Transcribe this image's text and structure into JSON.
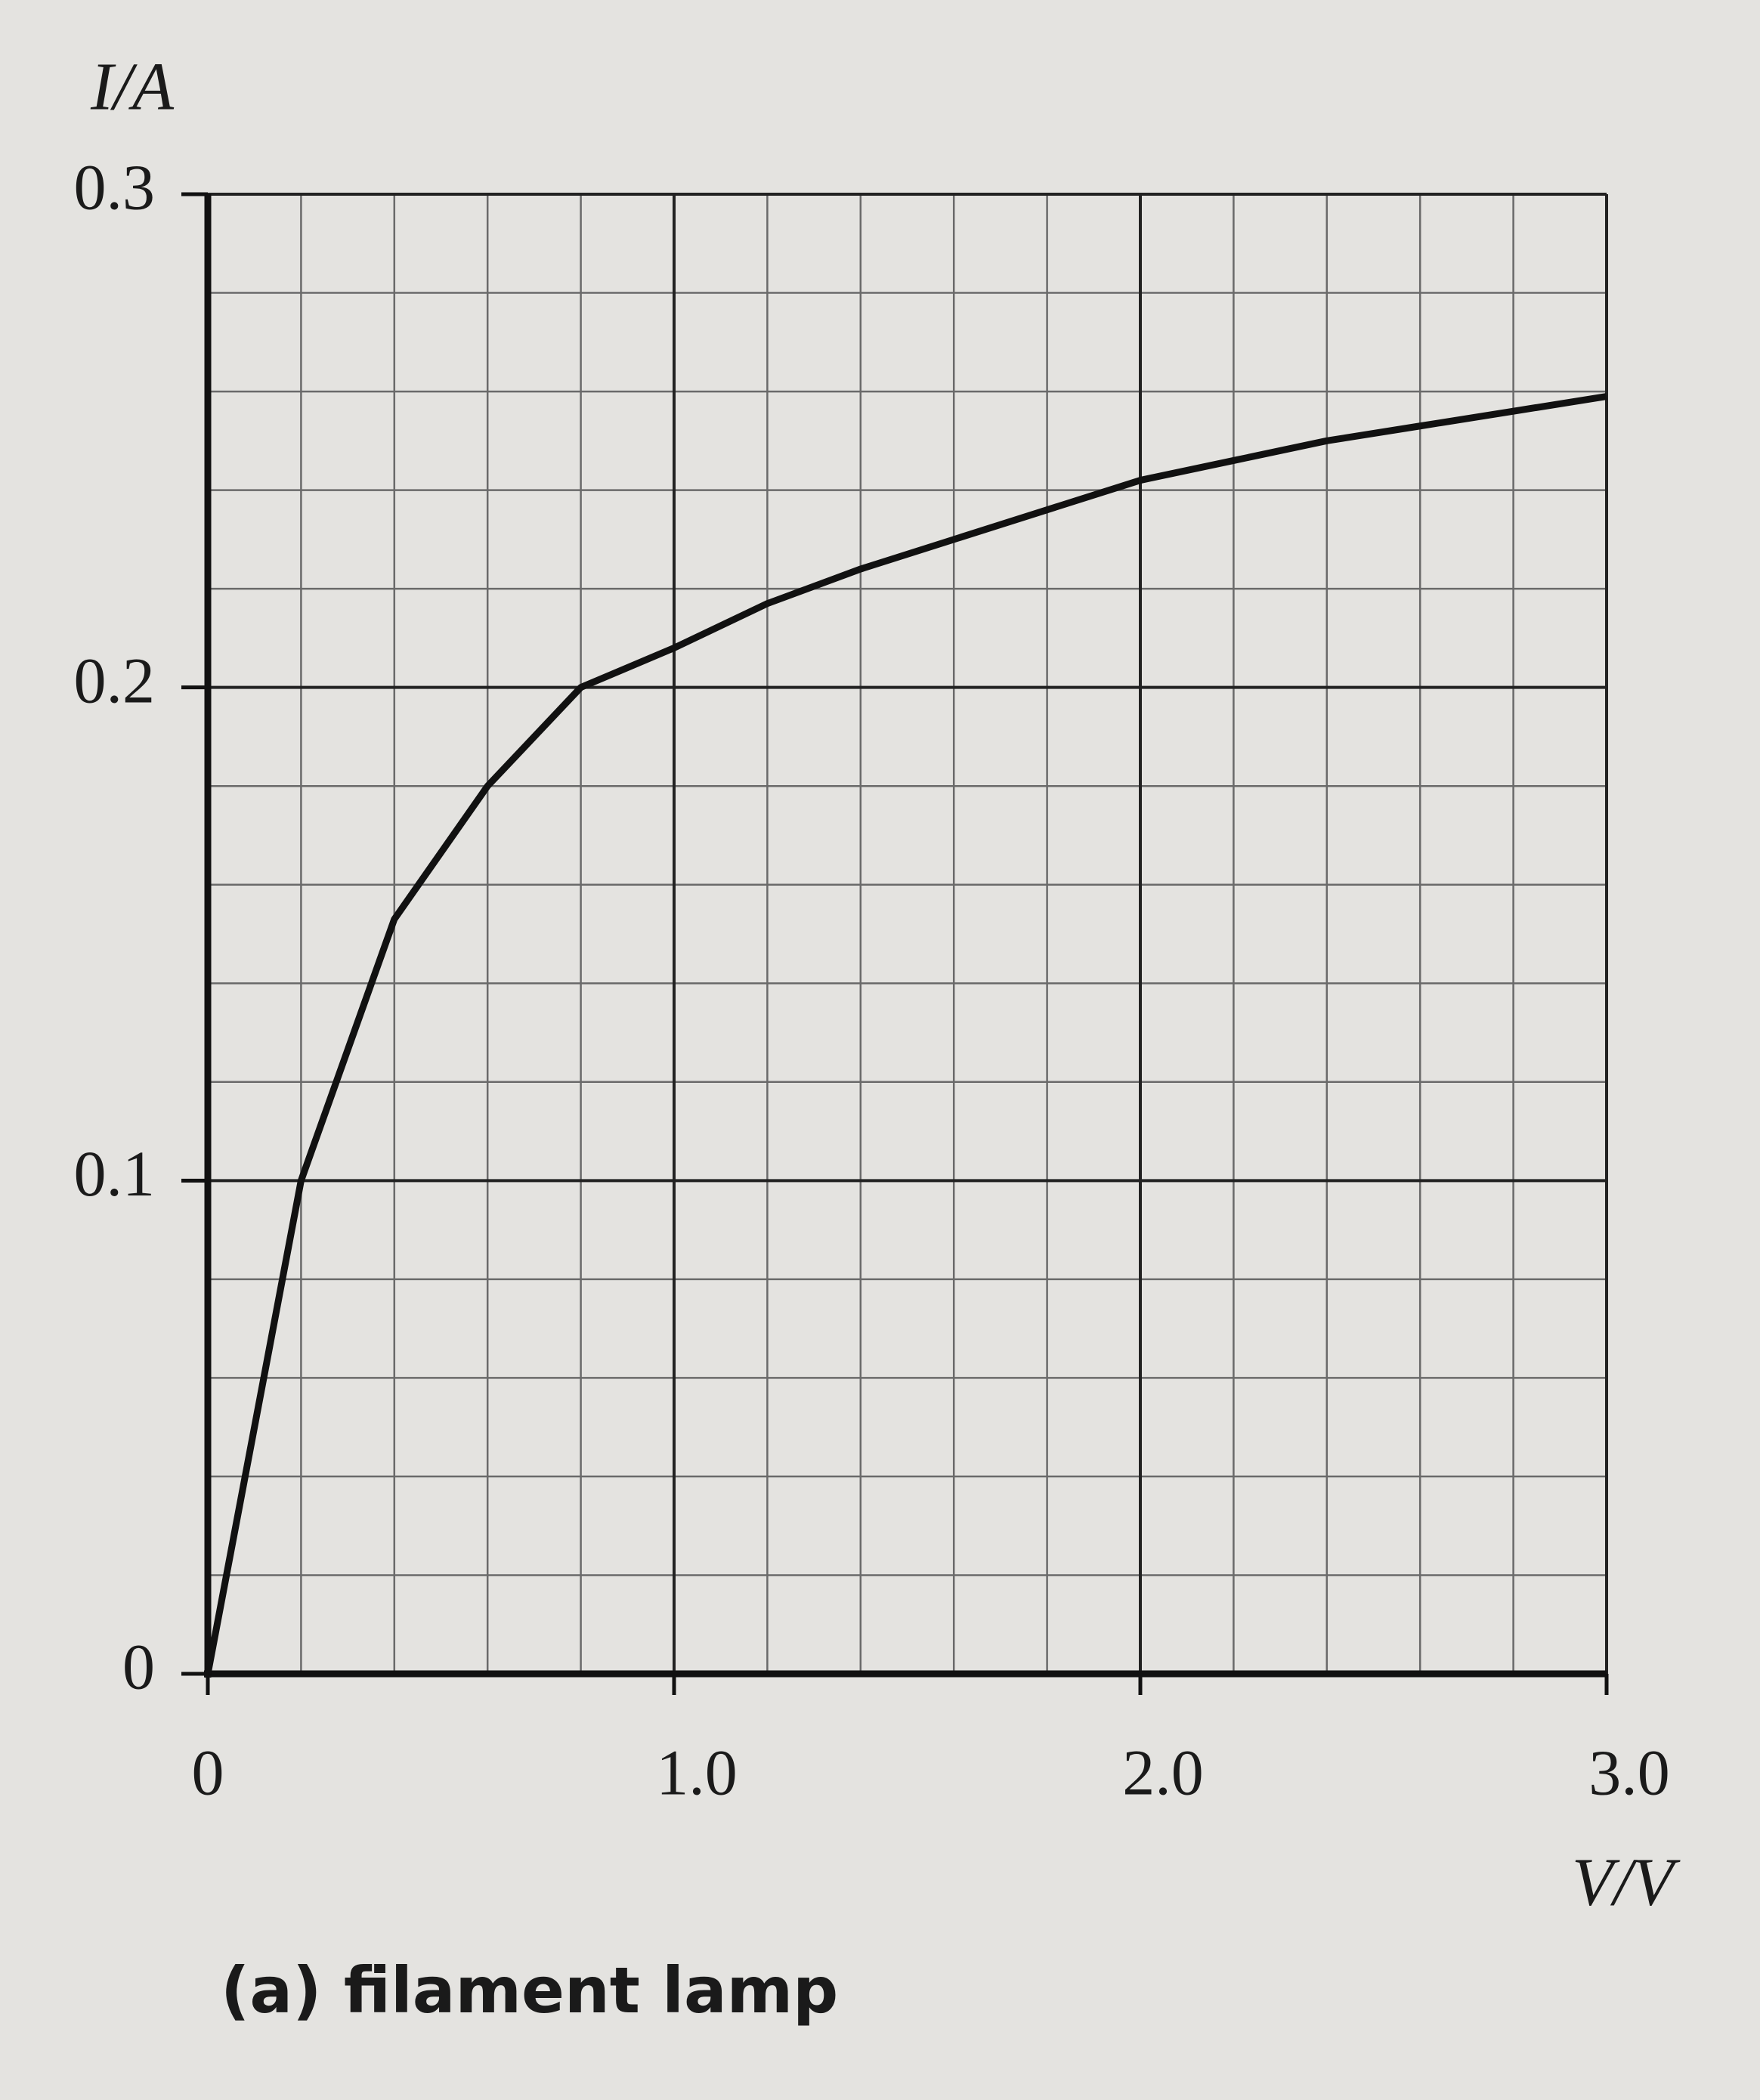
{
  "chart_data": {
    "type": "line",
    "x_label": "V/V",
    "y_label": "I/A",
    "caption": "(a) filament lamp",
    "x": [
      0,
      0.2,
      0.4,
      0.6,
      0.8,
      1.0,
      1.2,
      1.4,
      1.6,
      1.8,
      2.0,
      2.2,
      2.4,
      2.6,
      2.8,
      3.0
    ],
    "series": [
      {
        "color": "#111111",
        "values": [
          0,
          0.1,
          0.153,
          0.18,
          0.2,
          0.208,
          0.217,
          0.224,
          0.23,
          0.236,
          0.242,
          0.246,
          0.25,
          0.253,
          0.256,
          0.259
        ]
      }
    ],
    "xlim": [
      0,
      3
    ],
    "xticks": [
      0,
      {
        "value": 1,
        "label": "1.0"
      },
      {
        "value": 2,
        "label": "2.0"
      },
      {
        "value": 3,
        "label": "3.0"
      }
    ],
    "ylim": [
      0,
      0.3
    ],
    "yticks": [
      0,
      0.1,
      0.2,
      0.3
    ],
    "grid": true
  }
}
